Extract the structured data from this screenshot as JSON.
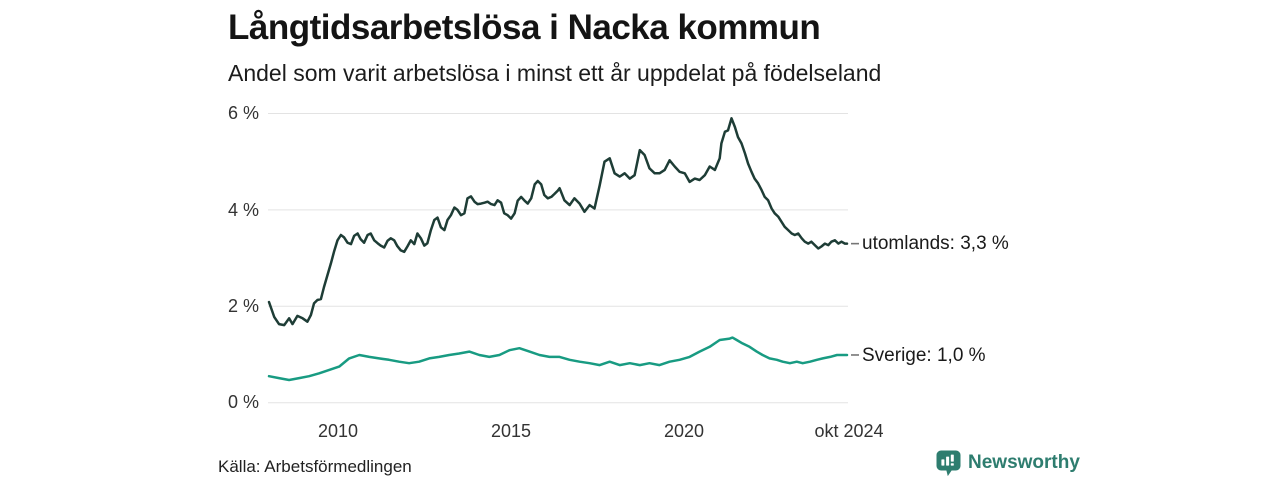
{
  "header": {
    "title": "Långtidsarbetslösa i Nacka kommun",
    "subtitle": "Andel som varit arbetslösa i minst ett år uppdelat på födelseland"
  },
  "footer": {
    "source": "Källa: Arbetsförmedlingen",
    "brand": "Newsworthy",
    "brand_icon": "newsworthy-bubble-barchart-icon"
  },
  "colors": {
    "utomlands_line": "#1e3d36",
    "sverige_line": "#189b82",
    "grid": "#e3e3e3",
    "connector": "#767676",
    "brand": "#2e7d6f",
    "text": "#1a1a1a"
  },
  "chart_data": {
    "type": "line",
    "title": "Långtidsarbetslösa i Nacka kommun",
    "subtitle": "Andel som varit arbetslösa i minst ett år uppdelat på födelseland",
    "xlabel": "",
    "ylabel": "",
    "unit": "%",
    "grid": true,
    "legend_position": "right-end-labels",
    "x_range": [
      2008.04,
      2024.75
    ],
    "ylim": [
      0,
      6
    ],
    "y_axis": {
      "ticks": [
        {
          "label": "6 %",
          "value": 6
        },
        {
          "label": "4 %",
          "value": 4
        },
        {
          "label": "2 %",
          "value": 2
        },
        {
          "label": "0 %",
          "value": 0
        }
      ]
    },
    "x_axis": {
      "ticks": [
        {
          "label": "2010",
          "x": 2010
        },
        {
          "label": "2015",
          "x": 2015
        },
        {
          "label": "2020",
          "x": 2020
        },
        {
          "label": "okt 2024",
          "x": 2024.75
        }
      ]
    },
    "series": [
      {
        "name": "utomlands",
        "end_label": "utomlands: 3,3 %",
        "end_value_label": "3,3 %",
        "color": "#1e3d36",
        "points": [
          [
            2008.04,
            2.09
          ],
          [
            2008.19,
            1.78
          ],
          [
            2008.33,
            1.63
          ],
          [
            2008.48,
            1.61
          ],
          [
            2008.62,
            1.75
          ],
          [
            2008.72,
            1.63
          ],
          [
            2008.86,
            1.8
          ],
          [
            2009.01,
            1.75
          ],
          [
            2009.15,
            1.68
          ],
          [
            2009.25,
            1.82
          ],
          [
            2009.34,
            2.06
          ],
          [
            2009.44,
            2.13
          ],
          [
            2009.54,
            2.15
          ],
          [
            2009.63,
            2.4
          ],
          [
            2009.73,
            2.65
          ],
          [
            2009.83,
            2.89
          ],
          [
            2009.92,
            3.13
          ],
          [
            2010.02,
            3.37
          ],
          [
            2010.12,
            3.48
          ],
          [
            2010.21,
            3.43
          ],
          [
            2010.31,
            3.32
          ],
          [
            2010.41,
            3.29
          ],
          [
            2010.5,
            3.46
          ],
          [
            2010.6,
            3.51
          ],
          [
            2010.69,
            3.39
          ],
          [
            2010.79,
            3.32
          ],
          [
            2010.89,
            3.48
          ],
          [
            2010.98,
            3.51
          ],
          [
            2011.08,
            3.37
          ],
          [
            2011.18,
            3.31
          ],
          [
            2011.27,
            3.26
          ],
          [
            2011.37,
            3.22
          ],
          [
            2011.47,
            3.36
          ],
          [
            2011.56,
            3.41
          ],
          [
            2011.66,
            3.37
          ],
          [
            2011.75,
            3.25
          ],
          [
            2011.85,
            3.16
          ],
          [
            2011.95,
            3.13
          ],
          [
            2012.04,
            3.24
          ],
          [
            2012.14,
            3.37
          ],
          [
            2012.24,
            3.29
          ],
          [
            2012.33,
            3.51
          ],
          [
            2012.43,
            3.41
          ],
          [
            2012.53,
            3.26
          ],
          [
            2012.62,
            3.31
          ],
          [
            2012.72,
            3.58
          ],
          [
            2012.82,
            3.79
          ],
          [
            2012.91,
            3.84
          ],
          [
            2013.01,
            3.64
          ],
          [
            2013.11,
            3.58
          ],
          [
            2013.2,
            3.79
          ],
          [
            2013.3,
            3.89
          ],
          [
            2013.4,
            4.05
          ],
          [
            2013.49,
            4.0
          ],
          [
            2013.59,
            3.89
          ],
          [
            2013.69,
            3.93
          ],
          [
            2013.78,
            4.24
          ],
          [
            2013.88,
            4.28
          ],
          [
            2013.98,
            4.17
          ],
          [
            2014.07,
            4.12
          ],
          [
            2014.17,
            4.13
          ],
          [
            2014.27,
            4.15
          ],
          [
            2014.36,
            4.17
          ],
          [
            2014.46,
            4.12
          ],
          [
            2014.56,
            4.1
          ],
          [
            2014.65,
            4.2
          ],
          [
            2014.75,
            4.15
          ],
          [
            2014.84,
            3.93
          ],
          [
            2014.94,
            3.89
          ],
          [
            2015.04,
            3.82
          ],
          [
            2015.14,
            3.93
          ],
          [
            2015.23,
            4.19
          ],
          [
            2015.33,
            4.27
          ],
          [
            2015.43,
            4.19
          ],
          [
            2015.52,
            4.13
          ],
          [
            2015.62,
            4.24
          ],
          [
            2015.72,
            4.53
          ],
          [
            2015.81,
            4.6
          ],
          [
            2015.91,
            4.53
          ],
          [
            2016.0,
            4.31
          ],
          [
            2016.1,
            4.24
          ],
          [
            2016.2,
            4.27
          ],
          [
            2016.29,
            4.33
          ],
          [
            2016.39,
            4.4
          ],
          [
            2016.44,
            4.45
          ],
          [
            2016.58,
            4.2
          ],
          [
            2016.73,
            4.1
          ],
          [
            2016.87,
            4.24
          ],
          [
            2017.02,
            4.13
          ],
          [
            2017.16,
            3.96
          ],
          [
            2017.31,
            4.1
          ],
          [
            2017.45,
            4.03
          ],
          [
            2017.6,
            4.51
          ],
          [
            2017.74,
            5.0
          ],
          [
            2017.89,
            5.07
          ],
          [
            2018.03,
            4.76
          ],
          [
            2018.18,
            4.69
          ],
          [
            2018.32,
            4.76
          ],
          [
            2018.47,
            4.65
          ],
          [
            2018.61,
            4.72
          ],
          [
            2018.76,
            5.24
          ],
          [
            2018.9,
            5.14
          ],
          [
            2019.04,
            4.86
          ],
          [
            2019.19,
            4.76
          ],
          [
            2019.33,
            4.76
          ],
          [
            2019.48,
            4.83
          ],
          [
            2019.62,
            5.03
          ],
          [
            2019.77,
            4.9
          ],
          [
            2019.91,
            4.79
          ],
          [
            2020.06,
            4.76
          ],
          [
            2020.2,
            4.58
          ],
          [
            2020.35,
            4.65
          ],
          [
            2020.49,
            4.62
          ],
          [
            2020.64,
            4.72
          ],
          [
            2020.78,
            4.9
          ],
          [
            2020.93,
            4.83
          ],
          [
            2021.07,
            5.07
          ],
          [
            2021.12,
            5.38
          ],
          [
            2021.22,
            5.62
          ],
          [
            2021.31,
            5.65
          ],
          [
            2021.41,
            5.9
          ],
          [
            2021.51,
            5.72
          ],
          [
            2021.6,
            5.51
          ],
          [
            2021.7,
            5.38
          ],
          [
            2021.8,
            5.17
          ],
          [
            2021.89,
            4.96
          ],
          [
            2021.99,
            4.79
          ],
          [
            2022.08,
            4.65
          ],
          [
            2022.18,
            4.55
          ],
          [
            2022.28,
            4.41
          ],
          [
            2022.37,
            4.27
          ],
          [
            2022.47,
            4.2
          ],
          [
            2022.57,
            4.03
          ],
          [
            2022.66,
            3.93
          ],
          [
            2022.76,
            3.86
          ],
          [
            2022.86,
            3.75
          ],
          [
            2022.95,
            3.65
          ],
          [
            2023.05,
            3.58
          ],
          [
            2023.15,
            3.51
          ],
          [
            2023.24,
            3.48
          ],
          [
            2023.34,
            3.51
          ],
          [
            2023.44,
            3.41
          ],
          [
            2023.53,
            3.34
          ],
          [
            2023.63,
            3.3
          ],
          [
            2023.72,
            3.34
          ],
          [
            2023.82,
            3.27
          ],
          [
            2023.92,
            3.2
          ],
          [
            2024.01,
            3.24
          ],
          [
            2024.11,
            3.3
          ],
          [
            2024.21,
            3.27
          ],
          [
            2024.3,
            3.34
          ],
          [
            2024.4,
            3.37
          ],
          [
            2024.5,
            3.3
          ],
          [
            2024.59,
            3.34
          ],
          [
            2024.69,
            3.3
          ],
          [
            2024.75,
            3.3
          ]
        ]
      },
      {
        "name": "Sverige",
        "end_label": "Sverige: 1,0 %",
        "end_value_label": "1,0 %",
        "color": "#189b82",
        "points": [
          [
            2008.04,
            0.55
          ],
          [
            2008.33,
            0.51
          ],
          [
            2008.62,
            0.47
          ],
          [
            2008.91,
            0.51
          ],
          [
            2009.2,
            0.55
          ],
          [
            2009.49,
            0.61
          ],
          [
            2009.78,
            0.68
          ],
          [
            2010.07,
            0.75
          ],
          [
            2010.36,
            0.92
          ],
          [
            2010.65,
            0.99
          ],
          [
            2010.94,
            0.95
          ],
          [
            2011.22,
            0.92
          ],
          [
            2011.51,
            0.89
          ],
          [
            2011.8,
            0.85
          ],
          [
            2012.09,
            0.82
          ],
          [
            2012.38,
            0.85
          ],
          [
            2012.67,
            0.92
          ],
          [
            2012.96,
            0.95
          ],
          [
            2013.25,
            0.99
          ],
          [
            2013.54,
            1.02
          ],
          [
            2013.83,
            1.06
          ],
          [
            2014.12,
            0.99
          ],
          [
            2014.41,
            0.95
          ],
          [
            2014.7,
            0.99
          ],
          [
            2014.99,
            1.09
          ],
          [
            2015.28,
            1.13
          ],
          [
            2015.57,
            1.06
          ],
          [
            2015.86,
            0.99
          ],
          [
            2016.15,
            0.95
          ],
          [
            2016.44,
            0.95
          ],
          [
            2016.73,
            0.89
          ],
          [
            2017.02,
            0.85
          ],
          [
            2017.31,
            0.82
          ],
          [
            2017.6,
            0.78
          ],
          [
            2017.89,
            0.85
          ],
          [
            2018.18,
            0.78
          ],
          [
            2018.47,
            0.82
          ],
          [
            2018.76,
            0.78
          ],
          [
            2019.04,
            0.82
          ],
          [
            2019.33,
            0.78
          ],
          [
            2019.62,
            0.85
          ],
          [
            2019.91,
            0.89
          ],
          [
            2020.2,
            0.95
          ],
          [
            2020.49,
            1.06
          ],
          [
            2020.78,
            1.16
          ],
          [
            2021.07,
            1.3
          ],
          [
            2021.36,
            1.33
          ],
          [
            2021.44,
            1.35
          ],
          [
            2021.56,
            1.3
          ],
          [
            2021.73,
            1.23
          ],
          [
            2021.93,
            1.16
          ],
          [
            2022.14,
            1.06
          ],
          [
            2022.31,
            0.99
          ],
          [
            2022.51,
            0.92
          ],
          [
            2022.72,
            0.89
          ],
          [
            2022.89,
            0.85
          ],
          [
            2023.1,
            0.82
          ],
          [
            2023.3,
            0.85
          ],
          [
            2023.47,
            0.82
          ],
          [
            2023.68,
            0.85
          ],
          [
            2023.88,
            0.89
          ],
          [
            2024.05,
            0.92
          ],
          [
            2024.26,
            0.95
          ],
          [
            2024.46,
            0.99
          ],
          [
            2024.69,
            0.99
          ],
          [
            2024.75,
            0.99
          ]
        ]
      }
    ]
  }
}
